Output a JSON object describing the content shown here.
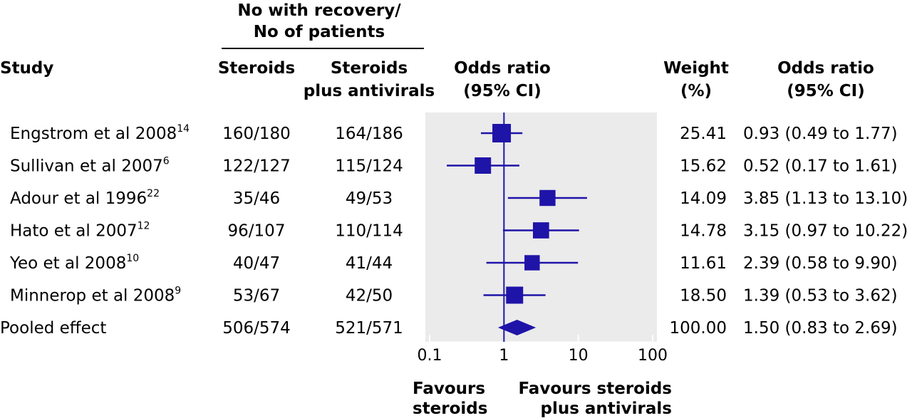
{
  "header": {
    "group_line1": "No with recovery/",
    "group_line2": "No of patients",
    "study": "Study",
    "steroids": "Steroids",
    "combo_line1": "Steroids",
    "combo_line2": "plus antivirals",
    "or_line1": "Odds ratio",
    "or_line2": "(95% CI)",
    "weight_line1": "Weight",
    "weight_line2": "(%)",
    "orci_line1": "Odds ratio",
    "orci_line2": "(95% CI)"
  },
  "favours": {
    "left_line1": "Favours",
    "left_line2": "steroids",
    "right_line1": "Favours steroids",
    "right_line2": "plus antivirals"
  },
  "chart_data": {
    "type": "forest",
    "x_scale": "log",
    "xlim": [
      0.1,
      100
    ],
    "x_ticks": [
      0.1,
      1,
      10,
      100
    ],
    "x_tick_labels": [
      "0.1",
      "1",
      "10",
      "100"
    ],
    "reference_line": 1,
    "colors": {
      "marker": "#1f14a8",
      "panel": "#ebebeb"
    },
    "studies": [
      {
        "name": "Engstrom et al 2008",
        "ref": "14",
        "steroids": "160/180",
        "combo": "164/186",
        "weight": "25.41",
        "or_text": "0.93 (0.49 to 1.77)",
        "or": 0.93,
        "lo": 0.49,
        "hi": 1.77
      },
      {
        "name": "Sullivan et al 2007",
        "ref": "6",
        "steroids": "122/127",
        "combo": "115/124",
        "weight": "15.62",
        "or_text": "0.52 (0.17 to 1.61)",
        "or": 0.52,
        "lo": 0.17,
        "hi": 1.61
      },
      {
        "name": "Adour et al 1996",
        "ref": "22",
        "steroids": "35/46",
        "combo": "49/53",
        "weight": "14.09",
        "or_text": "3.85 (1.13 to 13.10)",
        "or": 3.85,
        "lo": 1.13,
        "hi": 13.1
      },
      {
        "name": "Hato et al 2007",
        "ref": "12",
        "steroids": "96/107",
        "combo": "110/114",
        "weight": "14.78",
        "or_text": "3.15 (0.97 to 10.22)",
        "or": 3.15,
        "lo": 0.97,
        "hi": 10.22
      },
      {
        "name": "Yeo et al 2008",
        "ref": "10",
        "steroids": "40/47",
        "combo": "41/44",
        "weight": "11.61",
        "or_text": "2.39 (0.58 to 9.90)",
        "or": 2.39,
        "lo": 0.58,
        "hi": 9.9
      },
      {
        "name": "Minnerop et al 2008",
        "ref": "9",
        "steroids": "53/67",
        "combo": "42/50",
        "weight": "18.50",
        "or_text": "1.39 (0.53 to 3.62)",
        "or": 1.39,
        "lo": 0.53,
        "hi": 3.62
      }
    ],
    "pooled": {
      "name": "Pooled effect",
      "steroids": "506/574",
      "combo": "521/571",
      "weight": "100.00",
      "or_text": "1.50 (0.83 to 2.69)",
      "or": 1.5,
      "lo": 0.83,
      "hi": 2.69
    }
  }
}
